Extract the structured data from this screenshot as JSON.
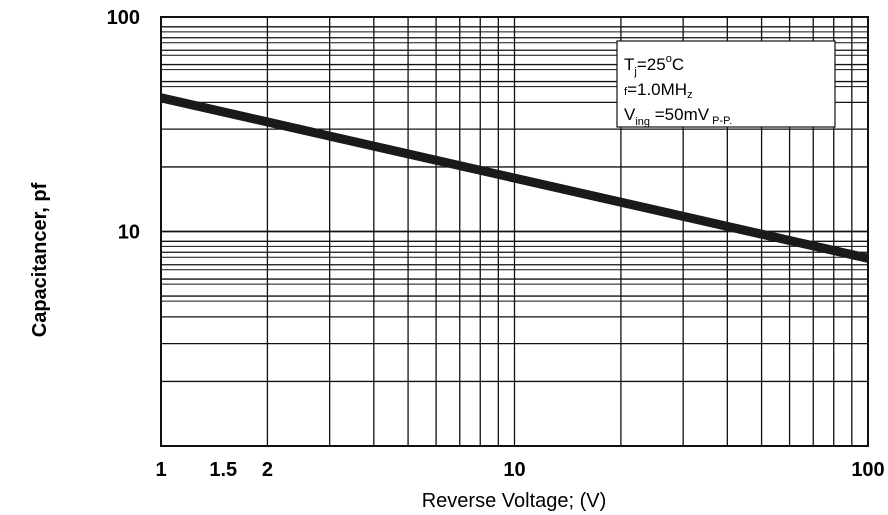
{
  "chart_data": {
    "type": "line",
    "xscale": "log",
    "yscale": "log",
    "xlim": [
      1,
      100
    ],
    "ylim": [
      1,
      100
    ],
    "x_ticks": [
      {
        "value": 1,
        "label": "1"
      },
      {
        "value": 1.5,
        "label": "1.5"
      },
      {
        "value": 2,
        "label": "2"
      },
      {
        "value": 10,
        "label": "10"
      },
      {
        "value": 100,
        "label": "100"
      }
    ],
    "y_ticks": [
      {
        "value": 100,
        "label": "100"
      },
      {
        "value": 10,
        "label": "10"
      }
    ],
    "xlabel": "Reverse Voltage; (V)",
    "ylabel": "Capacitancer, pf",
    "grid": true,
    "series": [
      {
        "x": [
          1,
          100
        ],
        "y": [
          42,
          7.5
        ]
      }
    ],
    "annotation": {
      "tj": "T",
      "tj_sub": "j",
      "tj_val": "=25",
      "tj_deg": "o",
      "tj_unit": "C",
      "f_prefix": "f",
      "f_val": "=1.0MH",
      "f_sub": "z",
      "v_prefix": "V",
      "v_sub": "ing",
      "v_val": " =50mV",
      "v_unit": " P-P."
    },
    "colors": {
      "line": "#1a1a1a",
      "grid": "#111111",
      "box": "#ffffff"
    }
  }
}
